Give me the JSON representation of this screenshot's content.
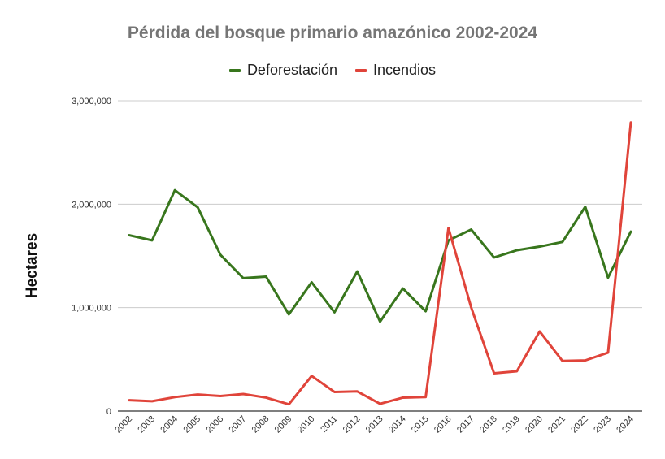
{
  "chart_data": {
    "type": "line",
    "title": "Pérdida del bosque primario amazónico 2002-2024",
    "xlabel": "",
    "ylabel": "Hectares",
    "ylim": [
      0,
      3000000
    ],
    "yticks": [
      {
        "value": 0,
        "label": "0"
      },
      {
        "value": 1000000,
        "label": "1,000,000"
      },
      {
        "value": 2000000,
        "label": "2,000,000"
      },
      {
        "value": 3000000,
        "label": "3,000,000"
      }
    ],
    "grid": true,
    "legend_position": "top",
    "x": [
      "2002",
      "2003",
      "2004",
      "2005",
      "2006",
      "2007",
      "2008",
      "2009",
      "2010",
      "2011",
      "2012",
      "2013",
      "2014",
      "2015",
      "2016",
      "2017",
      "2018",
      "2019",
      "2020",
      "2021",
      "2022",
      "2023",
      "2024"
    ],
    "series": [
      {
        "name": "Deforestación",
        "color": "#38761d",
        "values": [
          1700000,
          1650000,
          2135000,
          1970000,
          1510000,
          1285000,
          1300000,
          935000,
          1245000,
          955000,
          1350000,
          865000,
          1185000,
          965000,
          1650000,
          1755000,
          1485000,
          1555000,
          1590000,
          1635000,
          1975000,
          1290000,
          1735000
        ]
      },
      {
        "name": "Incendios",
        "color": "#e0443a",
        "values": [
          105000,
          95000,
          135000,
          160000,
          145000,
          165000,
          130000,
          65000,
          340000,
          185000,
          190000,
          70000,
          130000,
          135000,
          1770000,
          1000000,
          365000,
          385000,
          770000,
          485000,
          490000,
          565000,
          2790000
        ]
      }
    ]
  }
}
